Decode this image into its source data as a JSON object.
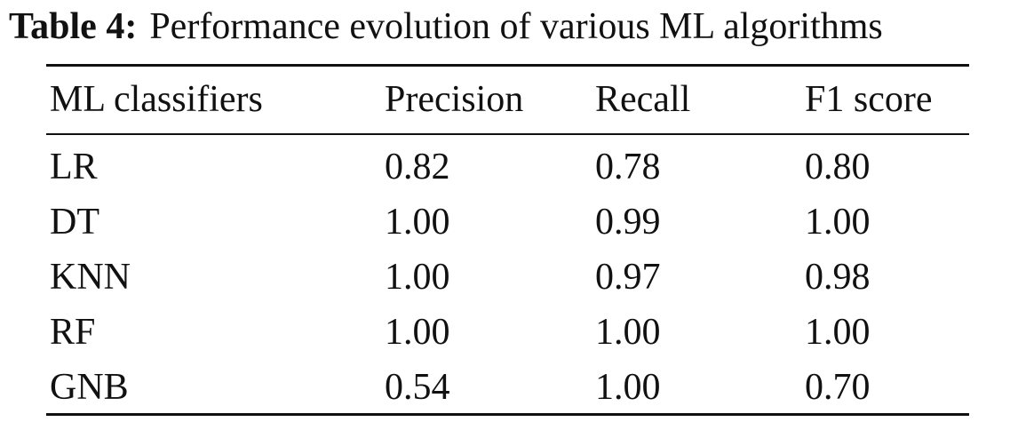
{
  "table": {
    "caption_label": "Table 4:",
    "caption_text": "Performance evolution of various ML algorithms",
    "headers": [
      "ML classifiers",
      "Precision",
      "Recall",
      "F1 score"
    ],
    "rows": [
      [
        "LR",
        "0.82",
        "0.78",
        "0.80"
      ],
      [
        "DT",
        "1.00",
        "0.99",
        "1.00"
      ],
      [
        "KNN",
        "1.00",
        "0.97",
        "0.98"
      ],
      [
        "RF",
        "1.00",
        "1.00",
        "1.00"
      ],
      [
        "GNB",
        "0.54",
        "1.00",
        "0.70"
      ]
    ]
  }
}
